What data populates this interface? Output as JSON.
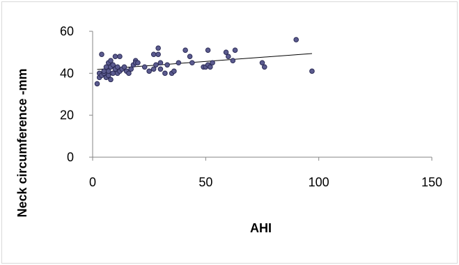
{
  "chart_data": {
    "type": "scatter",
    "title": "",
    "xlabel": "AHI",
    "ylabel": "Neck circumference -mm",
    "xlim": [
      0,
      150
    ],
    "ylim": [
      0,
      60
    ],
    "xticks": [
      0,
      50,
      100,
      150
    ],
    "yticks": [
      0,
      20,
      40,
      60
    ],
    "xtick_labels": [
      "0",
      "50",
      "100",
      "150"
    ],
    "ytick_labels": [
      "0",
      "20",
      "40",
      "60"
    ],
    "grid": false,
    "legend": "none",
    "series": [
      {
        "marker_color": "#5b5b8f",
        "points": [
          [
            2,
            35
          ],
          [
            3,
            38
          ],
          [
            3,
            40
          ],
          [
            4,
            49
          ],
          [
            4,
            39
          ],
          [
            5,
            40
          ],
          [
            5,
            41
          ],
          [
            6,
            38
          ],
          [
            6,
            43
          ],
          [
            7,
            39
          ],
          [
            7,
            41
          ],
          [
            7,
            45
          ],
          [
            8,
            46
          ],
          [
            8,
            37
          ],
          [
            8,
            43
          ],
          [
            9,
            44
          ],
          [
            9,
            40
          ],
          [
            10,
            48
          ],
          [
            10,
            42
          ],
          [
            11,
            40
          ],
          [
            11,
            43
          ],
          [
            12,
            41
          ],
          [
            12,
            48
          ],
          [
            13,
            42
          ],
          [
            14,
            43
          ],
          [
            15,
            41
          ],
          [
            16,
            40
          ],
          [
            17,
            42
          ],
          [
            18,
            44
          ],
          [
            19,
            46
          ],
          [
            19,
            45
          ],
          [
            20,
            45
          ],
          [
            23,
            43
          ],
          [
            25,
            41
          ],
          [
            27,
            49
          ],
          [
            27,
            42
          ],
          [
            28,
            44
          ],
          [
            29,
            52
          ],
          [
            29,
            49
          ],
          [
            30,
            45
          ],
          [
            30,
            42
          ],
          [
            32,
            40
          ],
          [
            33,
            44
          ],
          [
            35,
            40
          ],
          [
            36,
            41
          ],
          [
            38,
            45
          ],
          [
            41,
            51
          ],
          [
            43,
            48
          ],
          [
            44,
            45
          ],
          [
            49,
            43
          ],
          [
            50,
            43
          ],
          [
            51,
            44
          ],
          [
            51,
            51
          ],
          [
            52,
            43
          ],
          [
            53,
            45
          ],
          [
            59,
            50
          ],
          [
            60,
            48
          ],
          [
            62,
            46
          ],
          [
            63,
            51
          ],
          [
            75,
            45
          ],
          [
            76,
            43
          ],
          [
            90,
            56
          ],
          [
            97,
            41
          ]
        ]
      }
    ],
    "trendline": {
      "type": "linear",
      "x": [
        2,
        97
      ],
      "y": [
        41.8,
        49.4
      ]
    }
  }
}
